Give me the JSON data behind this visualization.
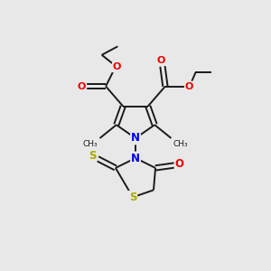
{
  "bg_color": "#e8e8e8",
  "bond_color": "#1a1a1a",
  "N_color": "#0000ee",
  "O_color": "#ee0000",
  "S_color": "#aaaa00",
  "font_size": 8.0,
  "line_width": 1.4,
  "xlim": [
    0,
    10
  ],
  "ylim": [
    0,
    10
  ]
}
